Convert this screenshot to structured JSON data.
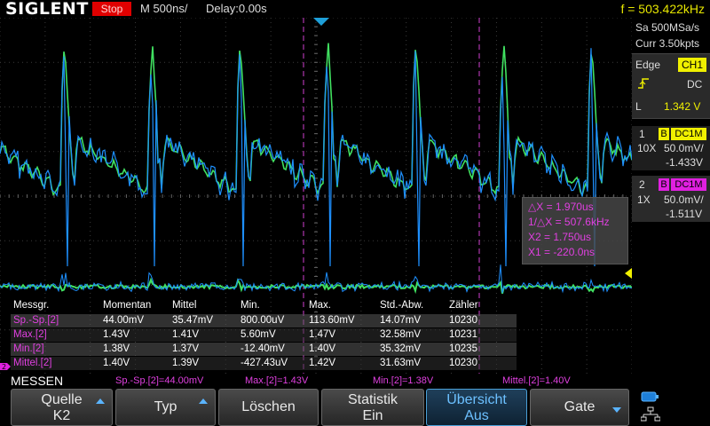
{
  "topbar": {
    "logo": "SIGLENT",
    "run_state": "Stop",
    "timebase": "M 500ns/",
    "delay": "Delay:0.00s",
    "frequency": "f = 503.422kHz"
  },
  "acquisition": {
    "sample_rate": "Sa 500MSa/s",
    "memory": "Curr 3.50kpts"
  },
  "trigger": {
    "type_label": "Edge",
    "source": "CH1",
    "coupling": "DC",
    "level_label": "L",
    "level": "1.342 V"
  },
  "channels": [
    {
      "number": "1",
      "bw": "B",
      "coupling": "DC1M",
      "probe": "10X",
      "scale": "50.0mV/",
      "offset": "-1.433V",
      "color": "#f0f000"
    },
    {
      "number": "2",
      "bw": "B",
      "coupling": "DC1M",
      "probe": "1X",
      "scale": "50.0mV/",
      "offset": "-1.511V",
      "color": "#e020e0"
    }
  ],
  "cursors": {
    "delta_x": "△X = 1.970us",
    "inv_delta_x": "1/△X = 507.6kHz",
    "x2": "X2 = 1.750us",
    "x1": "X1 = -220.0ns"
  },
  "measurements": {
    "headers": [
      "Messgr.",
      "Momentan",
      "Mittel",
      "Min.",
      "Max.",
      "Std.-Abw.",
      "Zähler"
    ],
    "rows": [
      {
        "name": "Sp.-Sp.[2]",
        "cur": "44.00mV",
        "mean": "35.47mV",
        "min": "800.00uV",
        "max": "113.60mV",
        "std": "14.07mV",
        "count": "10230"
      },
      {
        "name": "Max.[2]",
        "cur": "1.43V",
        "mean": "1.41V",
        "min": "5.60mV",
        "max": "1.47V",
        "std": "32.58mV",
        "count": "10231"
      },
      {
        "name": "Min.[2]",
        "cur": "1.38V",
        "mean": "1.37V",
        "min": "-12.40mV",
        "max": "1.40V",
        "std": "35.32mV",
        "count": "10235"
      },
      {
        "name": "Mittel.[2]",
        "cur": "1.40V",
        "mean": "1.39V",
        "min": "-427.43uV",
        "max": "1.42V",
        "std": "31.63mV",
        "count": "10230"
      }
    ]
  },
  "menu": {
    "title": "MESSEN",
    "summary": [
      "Sp.-Sp.[2]=44.00mV",
      "Max.[2]=1.43V",
      "Min.[2]=1.38V",
      "Mittel.[2]=1.40V"
    ]
  },
  "softkeys": [
    {
      "l1": "Quelle",
      "l2": "K2"
    },
    {
      "l1": "Typ",
      "l2": ""
    },
    {
      "l1": "Löschen",
      "l2": ""
    },
    {
      "l1": "Statistik",
      "l2": "Ein"
    },
    {
      "l1": "Übersicht",
      "l2": "Aus"
    },
    {
      "l1": "Gate",
      "l2": ""
    }
  ]
}
